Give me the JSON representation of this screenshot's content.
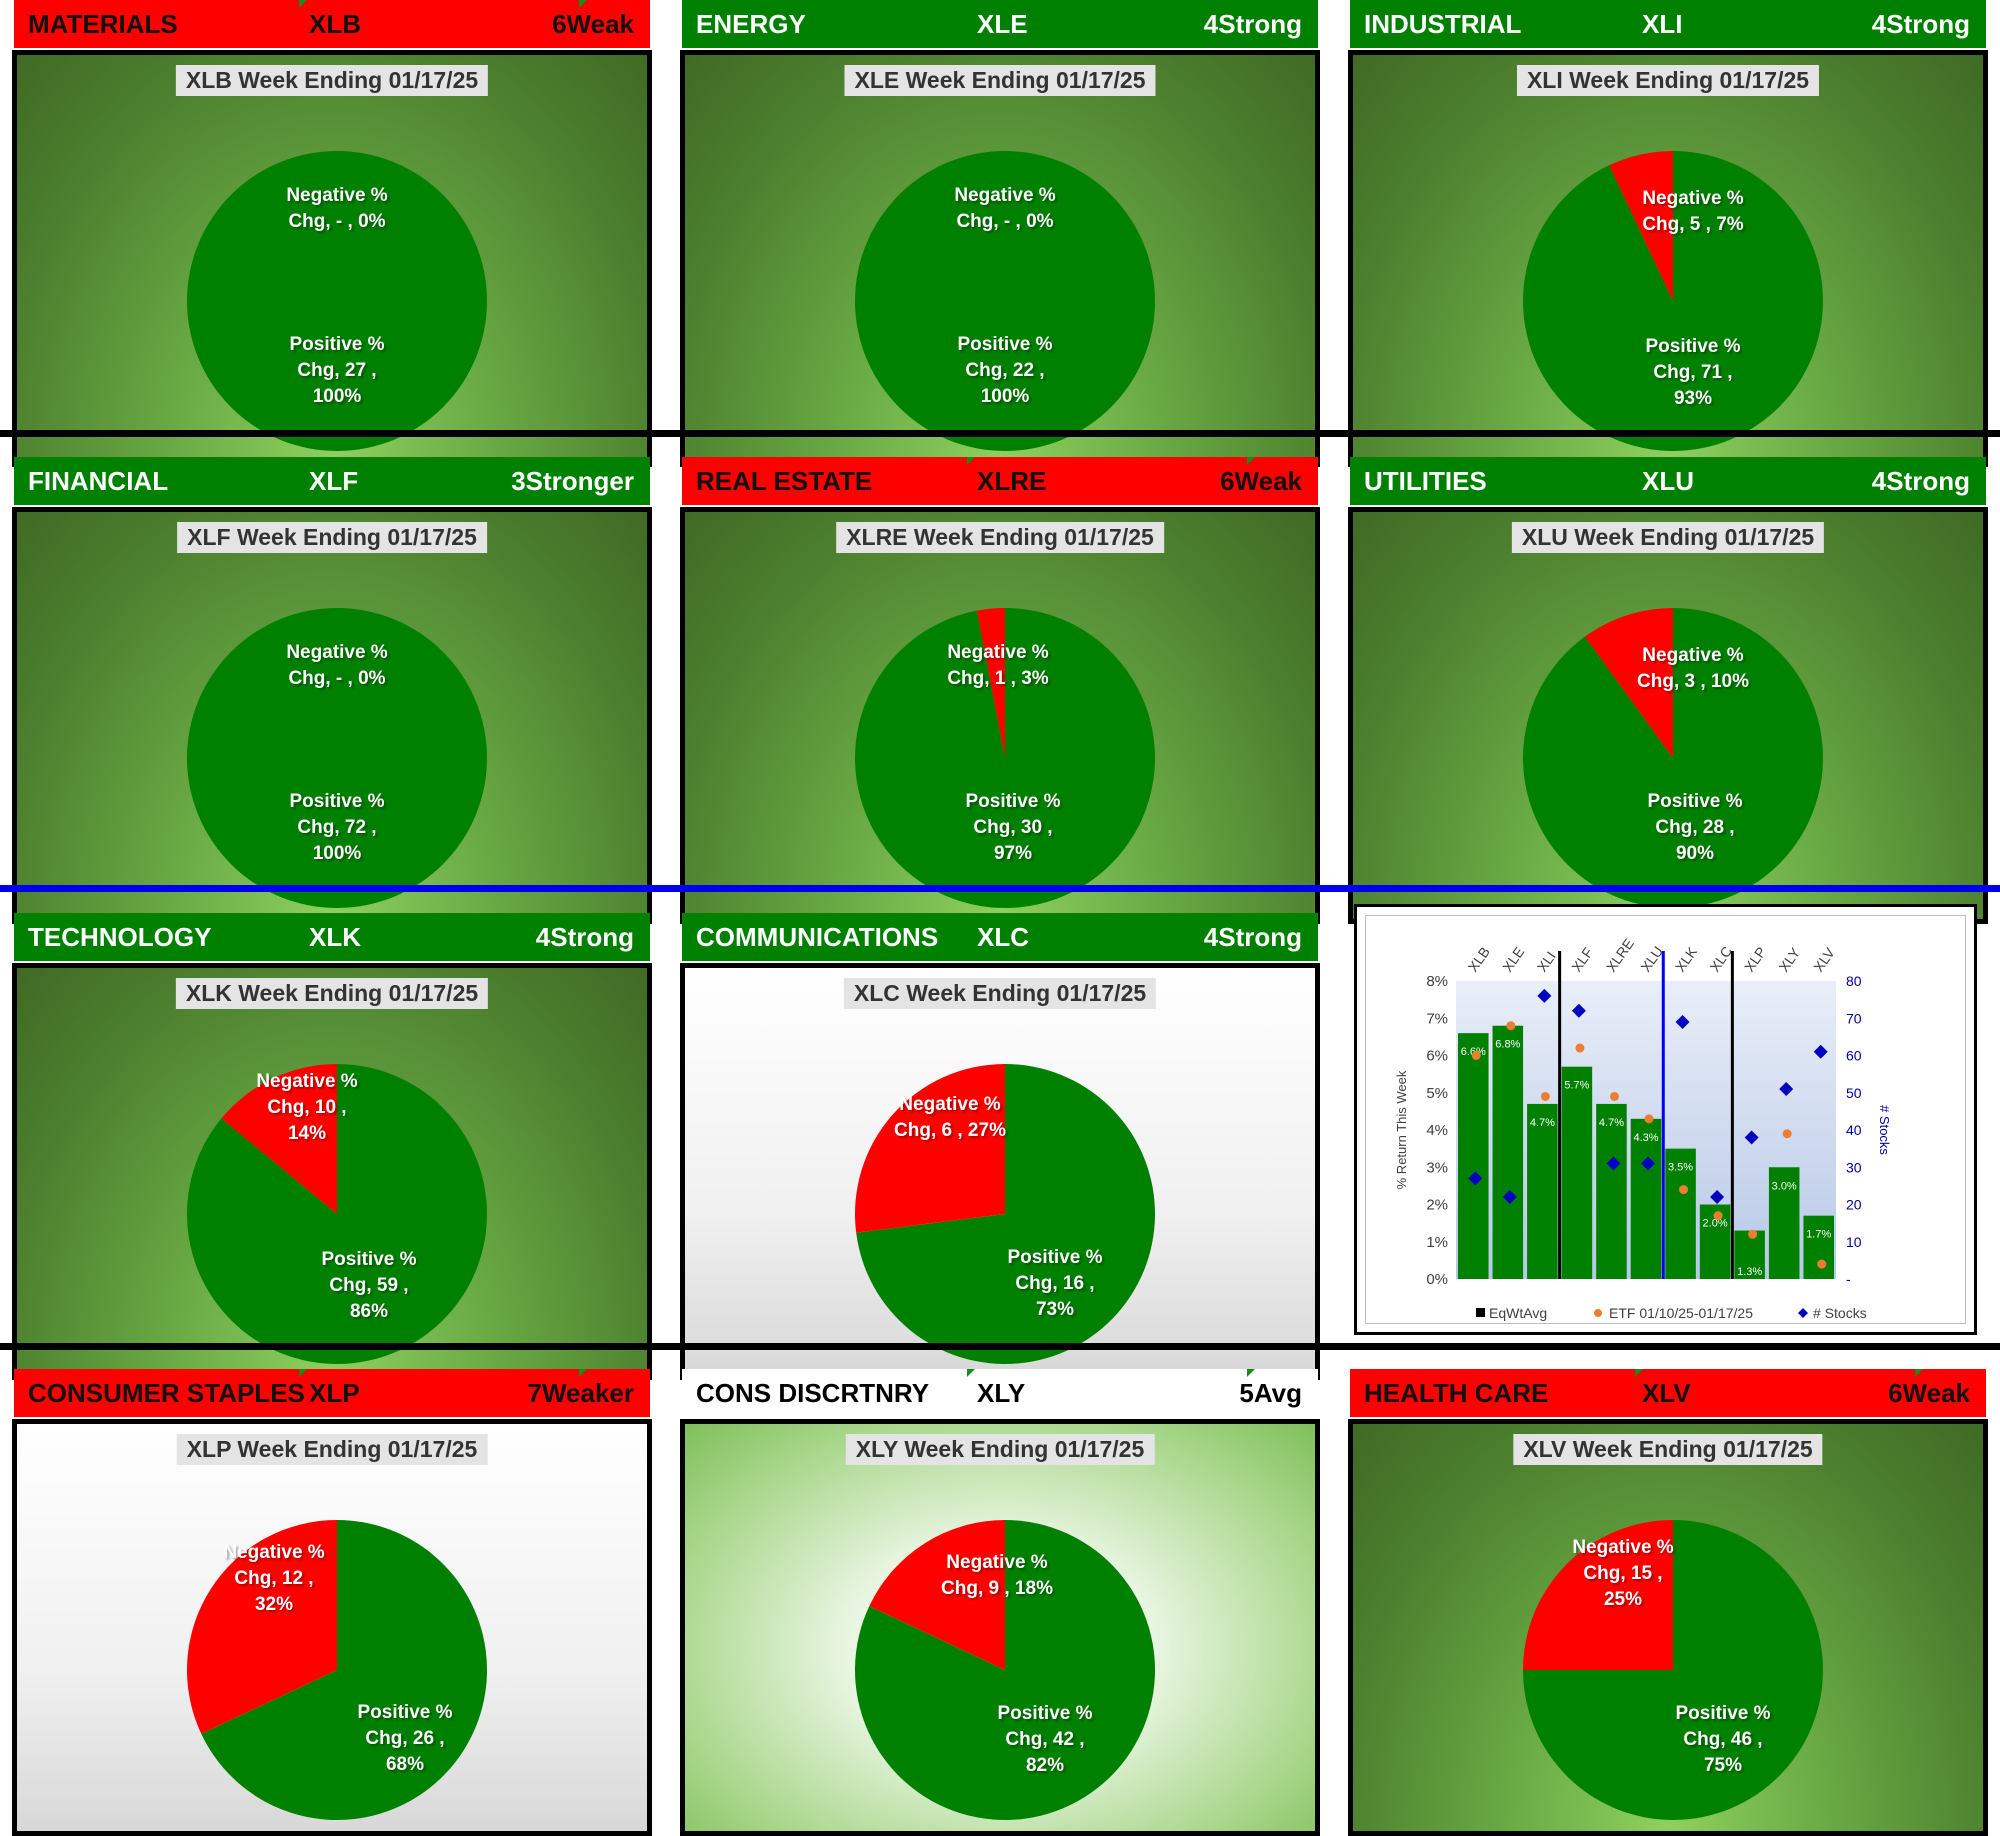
{
  "week_ending": "01/17/25",
  "sectors": [
    {
      "id": "xlb",
      "sector": "MATERIALS",
      "ticker": "XLB",
      "rating": "6Weak",
      "header_color": "red",
      "panel_bg": "green",
      "title": "XLB Week Ending 01/17/25",
      "negative_count": "-",
      "negative_pct": 0,
      "positive_count": 27,
      "positive_pct": 100,
      "neg_label": [
        "Negative %",
        "Chg,  -   , 0%"
      ],
      "pos_label": [
        "Positive %",
        "Chg,  27 ,",
        "100%"
      ]
    },
    {
      "id": "xle",
      "sector": "ENERGY",
      "ticker": "XLE",
      "rating": "4Strong",
      "header_color": "green",
      "panel_bg": "green",
      "title": "XLE Week Ending 01/17/25",
      "negative_count": "-",
      "negative_pct": 0,
      "positive_count": 22,
      "positive_pct": 100,
      "neg_label": [
        "Negative %",
        "Chg,  -   , 0%"
      ],
      "pos_label": [
        "Positive %",
        "Chg,  22 ,",
        "100%"
      ]
    },
    {
      "id": "xli",
      "sector": "INDUSTRIAL",
      "ticker": "XLI",
      "rating": "4Strong",
      "header_color": "green",
      "panel_bg": "green",
      "title": "XLI Week Ending 01/17/25",
      "negative_count": 5,
      "negative_pct": 7,
      "positive_count": 71,
      "positive_pct": 93,
      "neg_label": [
        "Negative %",
        "Chg,  5 , 7%"
      ],
      "pos_label": [
        "Positive %",
        "Chg,  71 ,",
        "93%"
      ]
    },
    {
      "id": "xlf",
      "sector": "FINANCIAL",
      "ticker": "XLF",
      "rating": "3Stronger",
      "header_color": "green",
      "panel_bg": "green",
      "title": "XLF Week Ending 01/17/25",
      "negative_count": "-",
      "negative_pct": 0,
      "positive_count": 72,
      "positive_pct": 100,
      "neg_label": [
        "Negative %",
        "Chg,  -   , 0%"
      ],
      "pos_label": [
        "Positive %",
        "Chg,  72 ,",
        "100%"
      ]
    },
    {
      "id": "xlre",
      "sector": "REAL ESTATE",
      "ticker": "XLRE",
      "rating": "6Weak",
      "header_color": "red",
      "panel_bg": "green",
      "title": "XLRE Week Ending 01/17/25",
      "negative_count": 1,
      "negative_pct": 3,
      "positive_count": 30,
      "positive_pct": 97,
      "neg_label": [
        "Negative %",
        "Chg,  1 , 3%"
      ],
      "pos_label": [
        "Positive %",
        "Chg,  30 ,",
        "97%"
      ]
    },
    {
      "id": "xlu",
      "sector": "UTILITIES",
      "ticker": "XLU",
      "rating": "4Strong",
      "header_color": "green",
      "panel_bg": "green",
      "title": "XLU Week Ending 01/17/25",
      "negative_count": 3,
      "negative_pct": 10,
      "positive_count": 28,
      "positive_pct": 90,
      "neg_label": [
        "Negative %",
        "Chg,  3 , 10%"
      ],
      "pos_label": [
        "Positive %",
        "Chg,  28 ,",
        "90%"
      ]
    },
    {
      "id": "xlk",
      "sector": "TECHNOLOGY",
      "ticker": "XLK",
      "rating": "4Strong",
      "header_color": "green",
      "panel_bg": "green",
      "title": "XLK Week Ending 01/17/25",
      "negative_count": 10,
      "negative_pct": 14,
      "positive_count": 59,
      "positive_pct": 86,
      "neg_label": [
        "Negative %",
        "Chg,  10 ,",
        "14%"
      ],
      "pos_label": [
        "Positive %",
        "Chg,  59 ,",
        "86%"
      ]
    },
    {
      "id": "xlc",
      "sector": "COMMUNICATIONS",
      "ticker": "XLC",
      "rating": "4Strong",
      "header_color": "green",
      "panel_bg": "gray",
      "title": "XLC Week Ending 01/17/25",
      "negative_count": 6,
      "negative_pct": 27,
      "positive_count": 16,
      "positive_pct": 73,
      "neg_label": [
        "Negative %",
        "Chg,  6 , 27%"
      ],
      "pos_label": [
        "Positive %",
        "Chg,  16 ,",
        "73%"
      ]
    },
    {
      "id": "xlp",
      "sector": "CONSUMER STAPLES",
      "ticker": "XLP",
      "rating": "7Weaker",
      "header_color": "red",
      "panel_bg": "gray",
      "title": "XLP Week Ending 01/17/25",
      "negative_count": 12,
      "negative_pct": 32,
      "positive_count": 26,
      "positive_pct": 68,
      "neg_label": [
        "Negative %",
        "Chg,  12 ,",
        "32%"
      ],
      "pos_label": [
        "Positive %",
        "Chg,  26 ,",
        "68%"
      ]
    },
    {
      "id": "xly",
      "sector": "CONS DISCRTNRY",
      "ticker": "XLY",
      "rating": "5Avg",
      "header_color": "white",
      "panel_bg": "light",
      "title": "XLY Week Ending 01/17/25",
      "negative_count": 9,
      "negative_pct": 18,
      "positive_count": 42,
      "positive_pct": 82,
      "neg_label": [
        "Negative %",
        "Chg,  9 , 18%"
      ],
      "pos_label": [
        "Positive %",
        "Chg,  42 ,",
        "82%"
      ]
    },
    {
      "id": "xlv",
      "sector": "HEALTH CARE",
      "ticker": "XLV",
      "rating": "6Weak",
      "header_color": "red",
      "panel_bg": "green",
      "title": "XLV Week Ending 01/17/25",
      "negative_count": 15,
      "negative_pct": 25,
      "positive_count": 46,
      "positive_pct": 75,
      "neg_label": [
        "Negative %",
        "Chg,  15 ,",
        "25%"
      ],
      "pos_label": [
        "Positive %",
        "Chg,  46 ,",
        "75%"
      ]
    }
  ],
  "colors": {
    "positive": "#008000",
    "negative": "#ff0000",
    "etf_dot": "#ed7d31",
    "stocks_marker": "#0000c0"
  },
  "chart_data": {
    "type": "bar",
    "categories": [
      "XLB",
      "XLE",
      "XLI",
      "XLF",
      "XLRE",
      "XLU",
      "XLK",
      "XLC",
      "XLP",
      "XLY",
      "XLV"
    ],
    "series": [
      {
        "name": "EqWtAvg",
        "kind": "bar",
        "values": [
          6.6,
          6.8,
          4.7,
          5.7,
          4.7,
          4.3,
          3.5,
          2.0,
          1.3,
          3.0,
          1.7
        ],
        "labels": [
          "6.6%",
          "6.8%",
          "4.7%",
          "5.7%",
          "4.7%",
          "4.3%",
          "3.5%",
          "2.0%",
          "1.3%",
          "3.0%",
          "1.7%"
        ]
      },
      {
        "name": "ETF 01/10/25-01/17/25",
        "kind": "dot",
        "values": [
          6.0,
          6.8,
          4.9,
          6.2,
          4.9,
          4.3,
          2.4,
          1.7,
          1.2,
          3.9,
          0.4
        ]
      },
      {
        "name": "# Stocks",
        "kind": "diamond",
        "axis": "right",
        "values": [
          27,
          22,
          76,
          72,
          31,
          31,
          69,
          22,
          38,
          51,
          61
        ]
      }
    ],
    "ylabel": "% Return This Week",
    "y2label": "# Stocks",
    "ylim": [
      0,
      8
    ],
    "y2lim": [
      0,
      80
    ],
    "yticks": [
      "0%",
      "1%",
      "2%",
      "3%",
      "4%",
      "5%",
      "6%",
      "7%",
      "8%"
    ],
    "y2ticks": [
      "-",
      "10",
      "20",
      "30",
      "40",
      "50",
      "60",
      "70",
      "80"
    ],
    "separators_after": [
      {
        "index": 2,
        "color": "#000000"
      },
      {
        "index": 5,
        "color": "#0000ee"
      },
      {
        "index": 7,
        "color": "#000000"
      }
    ],
    "legend": [
      "EqWtAvg",
      "ETF 01/10/25-01/17/25",
      "# Stocks"
    ]
  }
}
